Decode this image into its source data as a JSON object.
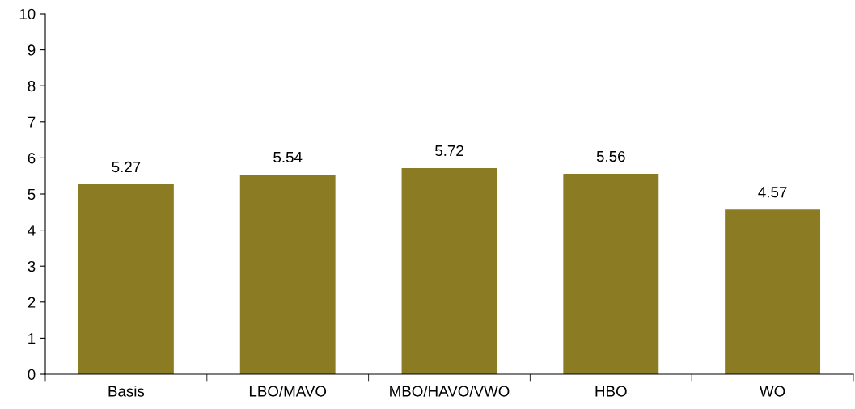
{
  "chart_data": {
    "type": "bar",
    "categories": [
      "Basis",
      "LBO/MAVO",
      "MBO/HAVO/VWO",
      "HBO",
      "WO"
    ],
    "values": [
      5.27,
      5.54,
      5.72,
      5.56,
      4.57
    ],
    "color": "#8b7b22",
    "ylim": [
      0,
      10
    ],
    "yticks": [
      0,
      1,
      2,
      3,
      4,
      5,
      6,
      7,
      8,
      9,
      10
    ],
    "data_labels": true,
    "grid": false,
    "legend": false
  }
}
